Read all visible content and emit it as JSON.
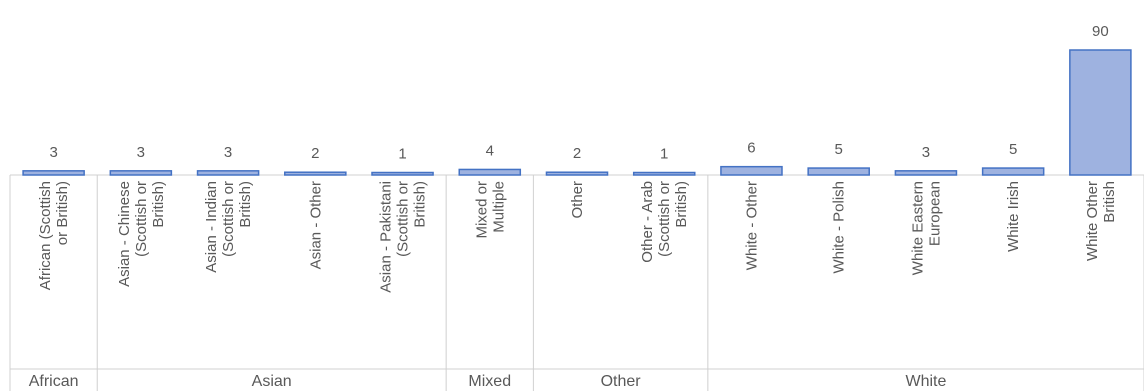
{
  "chart_data": {
    "type": "bar",
    "title": "",
    "xlabel": "",
    "ylabel": "",
    "ylim": [
      0,
      90
    ],
    "grid": false,
    "legend": "none",
    "bar_color": "#9eb2e0",
    "bar_edge_color": "#4472c4",
    "categories": [
      {
        "label": "African (Scottish or British)",
        "group": "African",
        "value": 3,
        "lines": [
          "African (Scottish",
          "or British)"
        ]
      },
      {
        "label": "Asian - Chinese (Scottish or British)",
        "group": "Asian",
        "value": 3,
        "lines": [
          "Asian - Chinese",
          "(Scottish or",
          "British)"
        ]
      },
      {
        "label": "Asian - Indian (Scottish or British)",
        "group": "Asian",
        "value": 3,
        "lines": [
          "Asian - Indian",
          "(Scottish or",
          "British)"
        ]
      },
      {
        "label": "Asian - Other",
        "group": "Asian",
        "value": 2,
        "lines": [
          "Asian - Other"
        ]
      },
      {
        "label": "Asian - Pakistani (Scottish or British)",
        "group": "Asian",
        "value": 1,
        "lines": [
          "Asian - Pakistani",
          "(Scottish or",
          "British)"
        ]
      },
      {
        "label": "Mixed or Multiple",
        "group": "Mixed",
        "value": 4,
        "lines": [
          "Mixed or",
          "Multiple"
        ]
      },
      {
        "label": "Other",
        "group": "Other",
        "value": 2,
        "lines": [
          "Other"
        ]
      },
      {
        "label": "Other - Arab (Scottish or British)",
        "group": "Other",
        "value": 1,
        "lines": [
          "Other - Arab",
          "(Scottish or",
          "British)"
        ]
      },
      {
        "label": "White - Other",
        "group": "White",
        "value": 6,
        "lines": [
          "White - Other"
        ]
      },
      {
        "label": "White - Polish",
        "group": "White",
        "value": 5,
        "lines": [
          "White - Polish"
        ]
      },
      {
        "label": "White Eastern European",
        "group": "White",
        "value": 3,
        "lines": [
          "White Eastern",
          "European"
        ]
      },
      {
        "label": "White Irish",
        "group": "White",
        "value": 5,
        "lines": [
          "White Irish"
        ]
      },
      {
        "label": "White Other British",
        "group": "White",
        "value": 90,
        "lines": [
          "White Other",
          "British"
        ]
      }
    ],
    "groups": [
      "African",
      "Asian",
      "Mixed",
      "Other",
      "White"
    ]
  }
}
